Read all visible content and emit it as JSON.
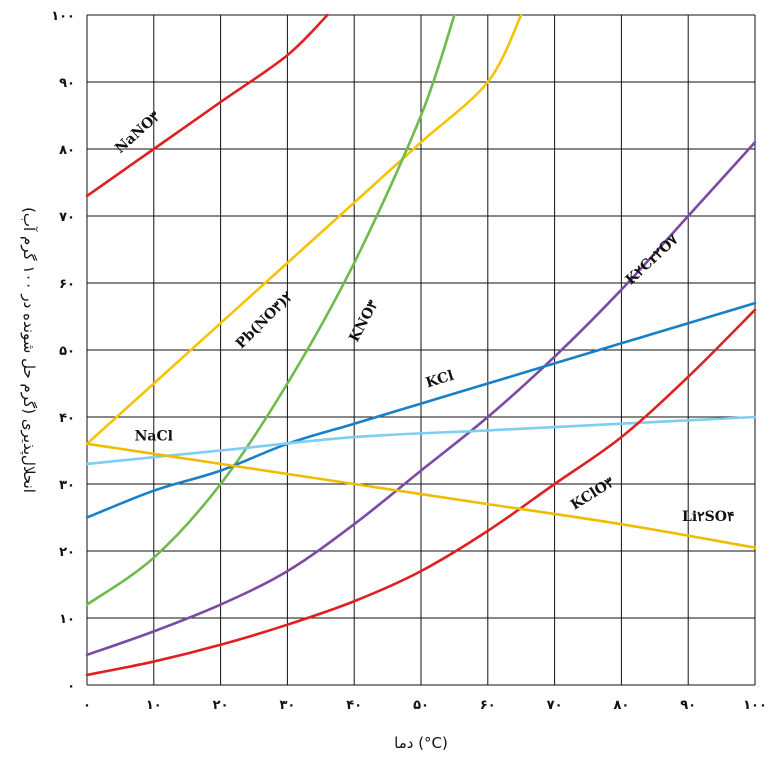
{
  "chart_data": {
    "type": "line",
    "xlabel": "دما (°C)",
    "ylabel": "انحلال‌پذیری (گرم حل شونده در ۱۰۰ گرم آب)",
    "xlim": [
      0,
      100
    ],
    "ylim": [
      0,
      100
    ],
    "x_ticks": [
      {
        "value": 0,
        "label": "۰"
      },
      {
        "value": 10,
        "label": "۱۰"
      },
      {
        "value": 20,
        "label": "۲۰"
      },
      {
        "value": 30,
        "label": "۳۰"
      },
      {
        "value": 40,
        "label": "۴۰"
      },
      {
        "value": 50,
        "label": "۵۰"
      },
      {
        "value": 60,
        "label": "۶۰"
      },
      {
        "value": 70,
        "label": "۷۰"
      },
      {
        "value": 80,
        "label": "۸۰"
      },
      {
        "value": 90,
        "label": "۹۰"
      },
      {
        "value": 100,
        "label": "۱۰۰"
      }
    ],
    "y_ticks": [
      {
        "value": 0,
        "label": "۰"
      },
      {
        "value": 10,
        "label": "۱۰"
      },
      {
        "value": 20,
        "label": "۲۰"
      },
      {
        "value": 30,
        "label": "۳۰"
      },
      {
        "value": 40,
        "label": "۴۰"
      },
      {
        "value": 50,
        "label": "۵۰"
      },
      {
        "value": 60,
        "label": "۶۰"
      },
      {
        "value": 70,
        "label": "۷۰"
      },
      {
        "value": 80,
        "label": "۸۰"
      },
      {
        "value": 90,
        "label": "۹۰"
      },
      {
        "value": 100,
        "label": "۱۰۰"
      }
    ],
    "grid": true,
    "series": [
      {
        "id": "nano3",
        "name": "NaNO۳",
        "color": "#e02020",
        "x": [
          0,
          10,
          20,
          30,
          36
        ],
        "y": [
          73,
          80,
          87,
          94,
          100
        ]
      },
      {
        "id": "pbno32",
        "name": "Pb(NO۳)۲",
        "color": "#f5c400",
        "x": [
          0,
          10,
          20,
          30,
          40,
          50,
          60,
          65
        ],
        "y": [
          36,
          45,
          54,
          63,
          72,
          81,
          90,
          100
        ]
      },
      {
        "id": "kno3",
        "name": "KNO۳",
        "color": "#6dbb4a",
        "x": [
          0,
          10,
          20,
          30,
          40,
          50,
          55
        ],
        "y": [
          12,
          19,
          30,
          45,
          63,
          85,
          100
        ]
      },
      {
        "id": "k2cr2o7",
        "name": "K۲Cr۲O۷",
        "color": "#7b4aa3",
        "x": [
          0,
          10,
          20,
          30,
          40,
          50,
          60,
          70,
          80,
          90,
          100
        ],
        "y": [
          4.5,
          8,
          12,
          17,
          24,
          32,
          40,
          49,
          59,
          70,
          81
        ]
      },
      {
        "id": "kcl",
        "name": "KCl",
        "color": "#1680c8",
        "x": [
          0,
          10,
          20,
          30,
          40,
          50,
          60,
          70,
          80,
          90,
          100
        ],
        "y": [
          25,
          29,
          32,
          36,
          39,
          42,
          45,
          48,
          51,
          54,
          57
        ]
      },
      {
        "id": "nacl",
        "name": "NaCl",
        "color": "#7fcdf0",
        "x": [
          0,
          20,
          40,
          60,
          80,
          100
        ],
        "y": [
          33,
          35,
          37,
          38,
          39,
          40
        ]
      },
      {
        "id": "kclo3",
        "name": "KClO۳",
        "color": "#e02020",
        "x": [
          0,
          10,
          20,
          30,
          40,
          50,
          60,
          70,
          80,
          90,
          100
        ],
        "y": [
          1.5,
          3.5,
          6,
          9,
          12.5,
          17,
          23,
          30,
          37,
          46,
          56
        ]
      },
      {
        "id": "li2so4",
        "name": "Li۲SO۴",
        "color": "#f0bc00",
        "x": [
          0,
          20,
          40,
          60,
          80,
          100
        ],
        "y": [
          36,
          33,
          30,
          27,
          24,
          20.5
        ]
      }
    ],
    "annotations": [
      {
        "series": "nano3",
        "text": "NaNO۳",
        "x": 8,
        "y": 82,
        "angle": -42
      },
      {
        "series": "pbno32",
        "text": "Pb(NO۳)۲",
        "x": 27,
        "y": 54,
        "angle": -45
      },
      {
        "series": "kno3",
        "text": "KNO۳",
        "x": 42,
        "y": 54,
        "angle": -62
      },
      {
        "series": "k2cr2o7",
        "text": "K۲Cr۲O۷",
        "x": 85,
        "y": 63,
        "angle": -43
      },
      {
        "series": "kcl",
        "text": "KCl",
        "x": 53,
        "y": 45,
        "angle": -17
      },
      {
        "series": "nacl",
        "text": "NaCl",
        "x": 10,
        "y": 36.5,
        "angle": 0
      },
      {
        "series": "kclo3",
        "text": "KClO۳",
        "x": 76,
        "y": 28,
        "angle": -32
      },
      {
        "series": "li2so4",
        "text": "Li۲SO۴",
        "x": 93,
        "y": 24.5,
        "angle": 0
      }
    ]
  }
}
